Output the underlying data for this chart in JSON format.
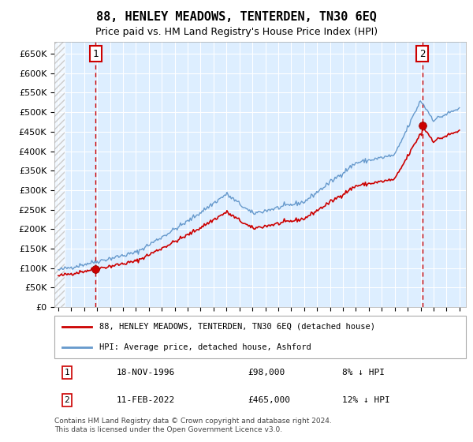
{
  "title": "88, HENLEY MEADOWS, TENTERDEN, TN30 6EQ",
  "subtitle": "Price paid vs. HM Land Registry's House Price Index (HPI)",
  "legend_line1": "88, HENLEY MEADOWS, TENTERDEN, TN30 6EQ (detached house)",
  "legend_line2": "HPI: Average price, detached house, Ashford",
  "transaction1_label": "1",
  "transaction1_date": "18-NOV-1996",
  "transaction1_price": "£98,000",
  "transaction1_hpi": "8% ↓ HPI",
  "transaction2_label": "2",
  "transaction2_date": "11-FEB-2022",
  "transaction2_price": "£465,000",
  "transaction2_hpi": "12% ↓ HPI",
  "footnote": "Contains HM Land Registry data © Crown copyright and database right 2024.\nThis data is licensed under the Open Government Licence v3.0.",
  "hpi_color": "#6699cc",
  "price_color": "#cc0000",
  "transaction_dot_color": "#cc0000",
  "dashed_line_color": "#cc0000",
  "background_color": "#ddeeff",
  "ylim": [
    0,
    680000
  ],
  "yticks": [
    0,
    50000,
    100000,
    150000,
    200000,
    250000,
    300000,
    350000,
    400000,
    450000,
    500000,
    550000,
    600000,
    650000
  ],
  "transaction1_year": 1996.88,
  "transaction2_year": 2022.12,
  "t1_price": 98000,
  "t2_price": 465000
}
